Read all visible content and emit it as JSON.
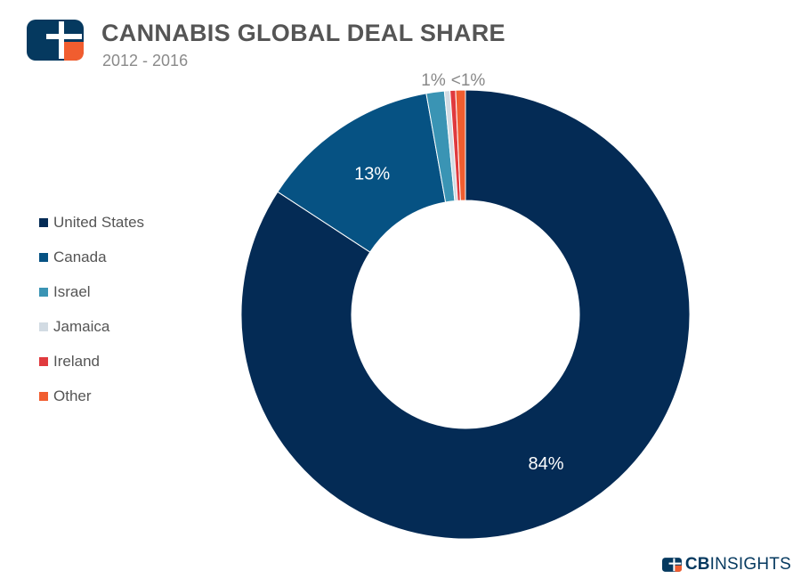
{
  "header": {
    "title": "CANNABIS GLOBAL DEAL SHARE",
    "subtitle": "2012 - 2016",
    "logo_icon": "cbinsights-logo-icon"
  },
  "brand": {
    "bold": "CB",
    "rest": "INSIGHTS",
    "icon": "cbinsights-logo-icon"
  },
  "chart_data": {
    "type": "pie",
    "variant": "donut",
    "series": [
      {
        "name": "United States",
        "value": 84.2,
        "label": "84%",
        "color": "#042b55"
      },
      {
        "name": "Canada",
        "value": 13.0,
        "label": "13%",
        "color": "#065283"
      },
      {
        "name": "Israel",
        "value": 1.3,
        "label": "",
        "color": "#3a94b4"
      },
      {
        "name": "Jamaica",
        "value": 0.4,
        "label": "",
        "color": "#d2dbe3"
      },
      {
        "name": "Ireland",
        "value": 0.4,
        "label": "",
        "color": "#e03a3e"
      },
      {
        "name": "Other",
        "value": 0.7,
        "label": "",
        "color": "#f15d2f"
      }
    ],
    "outer_annotations": [
      "1%",
      "<1%"
    ],
    "legend_position": "left"
  }
}
